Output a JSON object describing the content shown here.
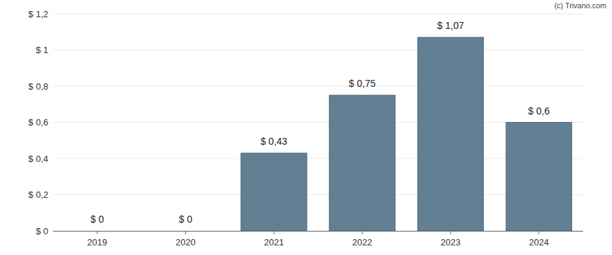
{
  "chart_data": {
    "type": "bar",
    "annotations": [
      "(c) Trivano.com"
    ],
    "categories": [
      "2019",
      "2020",
      "2021",
      "2022",
      "2023",
      "2024"
    ],
    "values": [
      0,
      0,
      0.43,
      0.75,
      1.07,
      0.6
    ],
    "value_labels": [
      "$ 0",
      "$ 0",
      "$ 0,43",
      "$ 0,75",
      "$ 1,07",
      "$ 0,6"
    ],
    "color": "#627f93",
    "ylim": [
      0,
      1.2
    ],
    "yticks": [
      {
        "value": 0,
        "label": "$ 0"
      },
      {
        "value": 0.2,
        "label": "$ 0,2"
      },
      {
        "value": 0.4,
        "label": "$ 0,4"
      },
      {
        "value": 0.6,
        "label": "$ 0,6"
      },
      {
        "value": 0.8,
        "label": "$ 0,8"
      },
      {
        "value": 1,
        "label": "$ 1"
      },
      {
        "value": 1.2,
        "label": "$ 1,2"
      }
    ],
    "grid": true,
    "data_labels": true
  }
}
